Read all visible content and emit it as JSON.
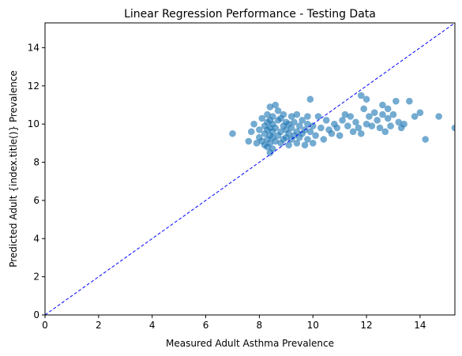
{
  "chart_data": {
    "type": "scatter",
    "title": "Linear Regression Performance - Testing Data",
    "xlabel": "Measured Adult Asthma Prevalence",
    "ylabel": "Predicted Adult {index.title()} Prevalence",
    "xlim": [
      0,
      15.3
    ],
    "ylim": [
      0,
      15.3
    ],
    "xticks": [
      0,
      2,
      4,
      6,
      8,
      10,
      12,
      14
    ],
    "yticks": [
      0,
      2,
      4,
      6,
      8,
      10,
      12,
      14
    ],
    "xtick_labels": [
      "0",
      "2",
      "4",
      "6",
      "8",
      "10",
      "12",
      "14"
    ],
    "ytick_labels": [
      "0",
      "2",
      "4",
      "6",
      "8",
      "10",
      "12",
      "14"
    ],
    "grid": false,
    "reference_line": {
      "type": "identity",
      "style": "dashed",
      "color": "#0000ff"
    },
    "point_color": "#1f77b4",
    "points": [
      [
        7.0,
        9.5
      ],
      [
        7.6,
        9.1
      ],
      [
        7.7,
        9.6
      ],
      [
        7.8,
        10.0
      ],
      [
        7.9,
        9.0
      ],
      [
        8.0,
        9.3
      ],
      [
        8.0,
        9.7
      ],
      [
        8.1,
        9.1
      ],
      [
        8.1,
        10.3
      ],
      [
        8.2,
        8.9
      ],
      [
        8.2,
        9.5
      ],
      [
        8.2,
        9.9
      ],
      [
        8.3,
        8.8
      ],
      [
        8.3,
        9.2
      ],
      [
        8.3,
        9.7
      ],
      [
        8.3,
        10.1
      ],
      [
        8.3,
        10.5
      ],
      [
        8.4,
        8.5
      ],
      [
        8.4,
        9.0
      ],
      [
        8.4,
        9.4
      ],
      [
        8.4,
        9.8
      ],
      [
        8.4,
        10.2
      ],
      [
        8.4,
        10.9
      ],
      [
        8.5,
        8.7
      ],
      [
        8.5,
        9.3
      ],
      [
        8.5,
        9.6
      ],
      [
        8.5,
        10.0
      ],
      [
        8.5,
        10.4
      ],
      [
        8.6,
        9.1
      ],
      [
        8.6,
        9.8
      ],
      [
        8.6,
        11.0
      ],
      [
        8.7,
        9.4
      ],
      [
        8.7,
        10.2
      ],
      [
        8.7,
        10.7
      ],
      [
        8.8,
        9.0
      ],
      [
        8.8,
        9.6
      ],
      [
        8.8,
        10.3
      ],
      [
        8.9,
        9.2
      ],
      [
        8.9,
        9.9
      ],
      [
        8.9,
        10.5
      ],
      [
        9.0,
        9.3
      ],
      [
        9.0,
        9.7
      ],
      [
        9.0,
        10.1
      ],
      [
        9.1,
        8.9
      ],
      [
        9.1,
        9.5
      ],
      [
        9.1,
        10.0
      ],
      [
        9.2,
        9.2
      ],
      [
        9.2,
        9.8
      ],
      [
        9.2,
        10.4
      ],
      [
        9.3,
        9.4
      ],
      [
        9.3,
        10.1
      ],
      [
        9.4,
        9.0
      ],
      [
        9.4,
        9.6
      ],
      [
        9.4,
        10.5
      ],
      [
        9.5,
        9.3
      ],
      [
        9.5,
        9.9
      ],
      [
        9.6,
        9.5
      ],
      [
        9.6,
        10.2
      ],
      [
        9.7,
        8.9
      ],
      [
        9.7,
        9.7
      ],
      [
        9.8,
        9.2
      ],
      [
        9.8,
        10.0
      ],
      [
        9.8,
        10.4
      ],
      [
        9.9,
        9.6
      ],
      [
        9.9,
        11.3
      ],
      [
        10.0,
        9.0
      ],
      [
        10.0,
        9.9
      ],
      [
        10.1,
        9.4
      ],
      [
        10.2,
        10.4
      ],
      [
        10.3,
        9.8
      ],
      [
        10.4,
        9.2
      ],
      [
        10.5,
        10.2
      ],
      [
        10.6,
        9.7
      ],
      [
        10.7,
        9.5
      ],
      [
        10.8,
        10.0
      ],
      [
        10.9,
        9.8
      ],
      [
        11.0,
        9.4
      ],
      [
        11.1,
        10.2
      ],
      [
        11.2,
        10.5
      ],
      [
        11.3,
        9.9
      ],
      [
        11.4,
        10.4
      ],
      [
        11.5,
        9.6
      ],
      [
        11.6,
        10.1
      ],
      [
        11.7,
        9.8
      ],
      [
        11.8,
        9.5
      ],
      [
        11.8,
        11.5
      ],
      [
        11.9,
        10.8
      ],
      [
        12.0,
        10.0
      ],
      [
        12.0,
        11.3
      ],
      [
        12.1,
        10.4
      ],
      [
        12.2,
        9.9
      ],
      [
        12.3,
        10.6
      ],
      [
        12.4,
        10.2
      ],
      [
        12.5,
        9.8
      ],
      [
        12.6,
        10.5
      ],
      [
        12.6,
        11.0
      ],
      [
        12.7,
        9.6
      ],
      [
        12.8,
        10.3
      ],
      [
        12.8,
        10.8
      ],
      [
        12.9,
        9.9
      ],
      [
        13.0,
        10.5
      ],
      [
        13.1,
        11.2
      ],
      [
        13.2,
        10.1
      ],
      [
        13.3,
        9.8
      ],
      [
        13.4,
        10.0
      ],
      [
        13.6,
        11.2
      ],
      [
        13.8,
        10.4
      ],
      [
        14.0,
        10.6
      ],
      [
        14.2,
        9.2
      ],
      [
        14.7,
        10.4
      ],
      [
        15.3,
        9.8
      ]
    ]
  }
}
